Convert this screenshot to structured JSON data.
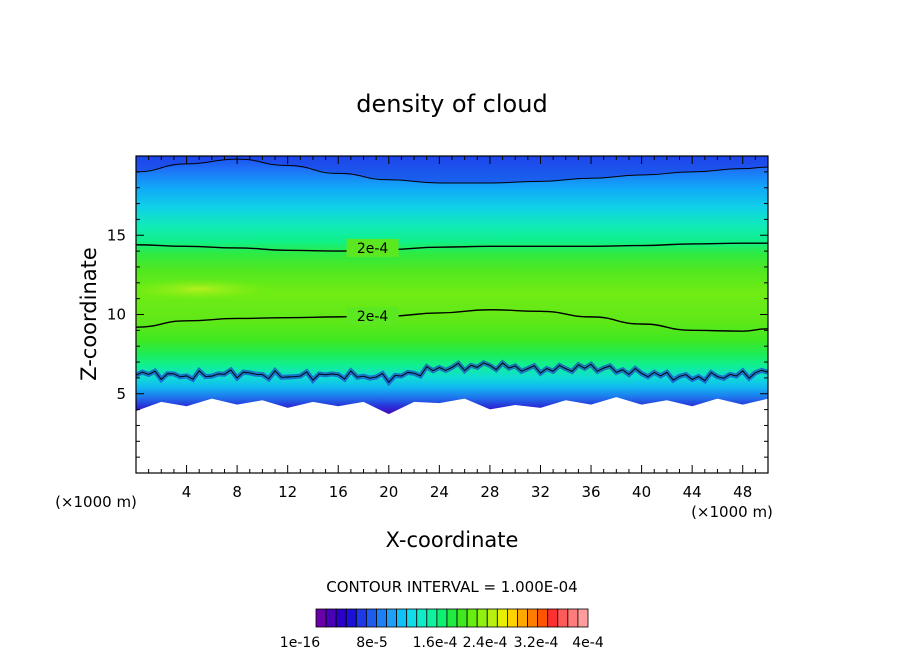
{
  "chart_data": {
    "type": "heatmap",
    "title": "density of cloud",
    "xlabel": "X-coordinate",
    "ylabel": "Z-coordinate",
    "x_unit_left": "(×1000 m)",
    "x_unit_right": "(×1000 m)",
    "xlim": [
      0,
      50
    ],
    "ylim": [
      0,
      20
    ],
    "x_ticks": [
      4,
      8,
      12,
      16,
      20,
      24,
      28,
      32,
      36,
      40,
      44,
      48
    ],
    "y_ticks": [
      5,
      10,
      15
    ],
    "contour_interval_text": "CONTOUR INTERVAL = 1.000E-04",
    "contour_labels": [
      {
        "text": "2e-4",
        "x": 16.5,
        "z": 14.2
      },
      {
        "text": "2e-4",
        "x": 16.5,
        "z": 9.9
      }
    ],
    "contours_2e4": {
      "upper": [
        [
          0,
          14.4
        ],
        [
          4,
          14.3
        ],
        [
          8,
          14.2
        ],
        [
          12,
          14.05
        ],
        [
          16,
          14.0
        ],
        [
          20,
          14.1
        ],
        [
          24,
          14.25
        ],
        [
          28,
          14.3
        ],
        [
          32,
          14.3
        ],
        [
          36,
          14.3
        ],
        [
          40,
          14.35
        ],
        [
          44,
          14.45
        ],
        [
          48,
          14.5
        ],
        [
          50,
          14.5
        ]
      ],
      "lower": [
        [
          0,
          9.2
        ],
        [
          4,
          9.6
        ],
        [
          8,
          9.75
        ],
        [
          12,
          9.8
        ],
        [
          16,
          9.85
        ],
        [
          20,
          9.9
        ],
        [
          24,
          10.1
        ],
        [
          28,
          10.3
        ],
        [
          32,
          10.2
        ],
        [
          36,
          9.85
        ],
        [
          40,
          9.4
        ],
        [
          44,
          9.0
        ],
        [
          48,
          8.95
        ],
        [
          50,
          9.1
        ]
      ]
    },
    "contour_top": [
      [
        0,
        19.0
      ],
      [
        4,
        19.5
      ],
      [
        8,
        19.8
      ],
      [
        12,
        19.4
      ],
      [
        16,
        18.9
      ],
      [
        20,
        18.5
      ],
      [
        24,
        18.3
      ],
      [
        28,
        18.3
      ],
      [
        32,
        18.4
      ],
      [
        36,
        18.6
      ],
      [
        40,
        18.8
      ],
      [
        44,
        19.0
      ],
      [
        48,
        19.2
      ],
      [
        50,
        19.3
      ]
    ],
    "contour_edge": [
      [
        0,
        6.3
      ],
      [
        4,
        6.1
      ],
      [
        8,
        6.3
      ],
      [
        12,
        6.1
      ],
      [
        16,
        6.2
      ],
      [
        20,
        6.0
      ],
      [
        24,
        6.6
      ],
      [
        28,
        6.8
      ],
      [
        32,
        6.5
      ],
      [
        36,
        6.7
      ],
      [
        40,
        6.3
      ],
      [
        44,
        6.0
      ],
      [
        48,
        6.2
      ],
      [
        50,
        6.4
      ]
    ],
    "cloud_base": [
      [
        0,
        4.1
      ],
      [
        2,
        4.3
      ],
      [
        4,
        4.4
      ],
      [
        6,
        4.5
      ],
      [
        8,
        4.5
      ],
      [
        10,
        4.4
      ],
      [
        12,
        4.3
      ],
      [
        14,
        4.3
      ],
      [
        16,
        4.4
      ],
      [
        18,
        4.3
      ],
      [
        20,
        3.9
      ],
      [
        22,
        4.3
      ],
      [
        24,
        4.6
      ],
      [
        26,
        4.5
      ],
      [
        28,
        4.2
      ],
      [
        30,
        4.1
      ],
      [
        32,
        4.3
      ],
      [
        34,
        4.4
      ],
      [
        36,
        4.5
      ],
      [
        38,
        4.6
      ],
      [
        40,
        4.5
      ],
      [
        42,
        4.4
      ],
      [
        44,
        4.4
      ],
      [
        46,
        4.5
      ],
      [
        48,
        4.5
      ],
      [
        50,
        4.5
      ]
    ],
    "max_region": {
      "x": 5,
      "z": 11.6
    },
    "colorbar": {
      "colors": [
        "#6a00a8",
        "#4800b8",
        "#2a00c8",
        "#1a10d8",
        "#1e3ae6",
        "#1e5cf0",
        "#1e80f8",
        "#1ea0fa",
        "#10c0f8",
        "#10dcea",
        "#10ecc8",
        "#10f2a0",
        "#10f070",
        "#20ec40",
        "#40e820",
        "#66ee10",
        "#90f010",
        "#b8f010",
        "#e6f000",
        "#ffd200",
        "#ffa800",
        "#ff7e00",
        "#ff5400",
        "#ff3030",
        "#ff5a5a",
        "#ff7c7c",
        "#ff9c9c"
      ],
      "labels": [
        "1e-16",
        "8e-5",
        "1.6e-4",
        "2.4e-4",
        "3.2e-4",
        "4e-4"
      ]
    }
  }
}
